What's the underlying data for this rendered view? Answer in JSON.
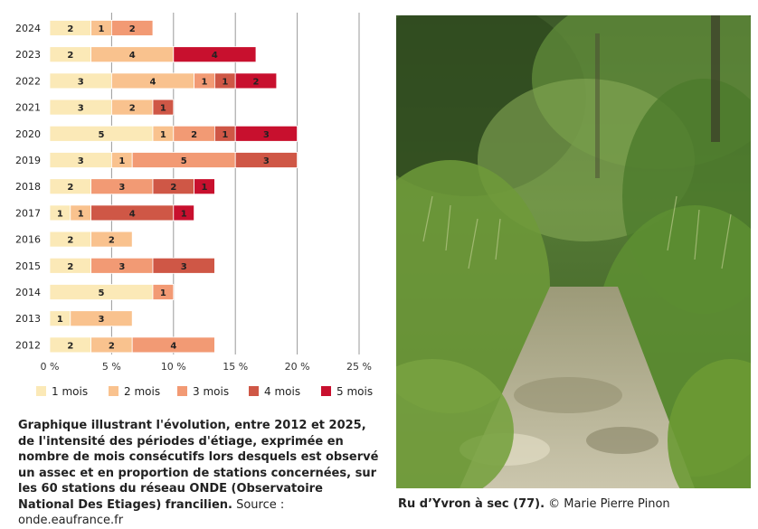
{
  "chart_data": {
    "type": "bar",
    "stacked": true,
    "orientation": "horizontal",
    "categories": [
      "2024",
      "2023",
      "2022",
      "2021",
      "2020",
      "2019",
      "2018",
      "2017",
      "2016",
      "2015",
      "2014",
      "2013",
      "2012"
    ],
    "series": [
      {
        "name": "1 mois",
        "color": "#fbe9b7",
        "values": [
          2,
          2,
          3,
          3,
          5,
          3,
          2,
          1,
          2,
          2,
          5,
          1,
          2
        ]
      },
      {
        "name": "2 mois",
        "color": "#f9c28e",
        "values": [
          1,
          4,
          4,
          2,
          1,
          1,
          0,
          1,
          2,
          0,
          0,
          3,
          2
        ]
      },
      {
        "name": "3 mois",
        "color": "#f29a74",
        "values": [
          2,
          0,
          1,
          0,
          2,
          5,
          3,
          0,
          0,
          3,
          1,
          0,
          4
        ]
      },
      {
        "name": "4 mois",
        "color": "#cf5746",
        "values": [
          0,
          0,
          1,
          1,
          1,
          3,
          2,
          4,
          0,
          3,
          0,
          0,
          0
        ]
      },
      {
        "name": "5 mois",
        "color": "#c8102e",
        "values": [
          0,
          4,
          2,
          0,
          3,
          0,
          1,
          1,
          0,
          0,
          0,
          0,
          0
        ]
      }
    ],
    "segment_series": [
      [
        0,
        1,
        2
      ],
      [
        0,
        1,
        4
      ],
      [
        0,
        1,
        2,
        3,
        4
      ],
      [
        0,
        1,
        3
      ],
      [
        0,
        1,
        2,
        3,
        4
      ],
      [
        0,
        1,
        2,
        3
      ],
      [
        0,
        2,
        3,
        4
      ],
      [
        0,
        1,
        3,
        4
      ],
      [
        0,
        1
      ],
      [
        0,
        2,
        3
      ],
      [
        0,
        2
      ],
      [
        0,
        1
      ],
      [
        0,
        1,
        3
      ]
    ],
    "xlim": [
      0,
      25
    ],
    "xticks": [
      0,
      5,
      10,
      15,
      20,
      25
    ],
    "xtick_labels": [
      "0 %",
      "5 %",
      "10 %",
      "15 %",
      "20 %",
      "25 %"
    ],
    "grid": true,
    "legend_position": "bottom"
  },
  "caption": {
    "bold_text": "Graphique illustrant l'évolution, entre 2012 et 2025, de l'intensité des périodes d'étiage, exprimée en nombre de mois consécutifs lors desquels est observé un assec et en proportion de stations concernées, sur les 60 stations du réseau ONDE (Observatoire National Des Etiages) francilien.",
    "source_text": " Source : onde.eaufrance.fr"
  },
  "photo": {
    "caption_bold": "Ru d’Yvron à sec (77).",
    "caption_rest": " © Marie Pierre Pinon"
  }
}
